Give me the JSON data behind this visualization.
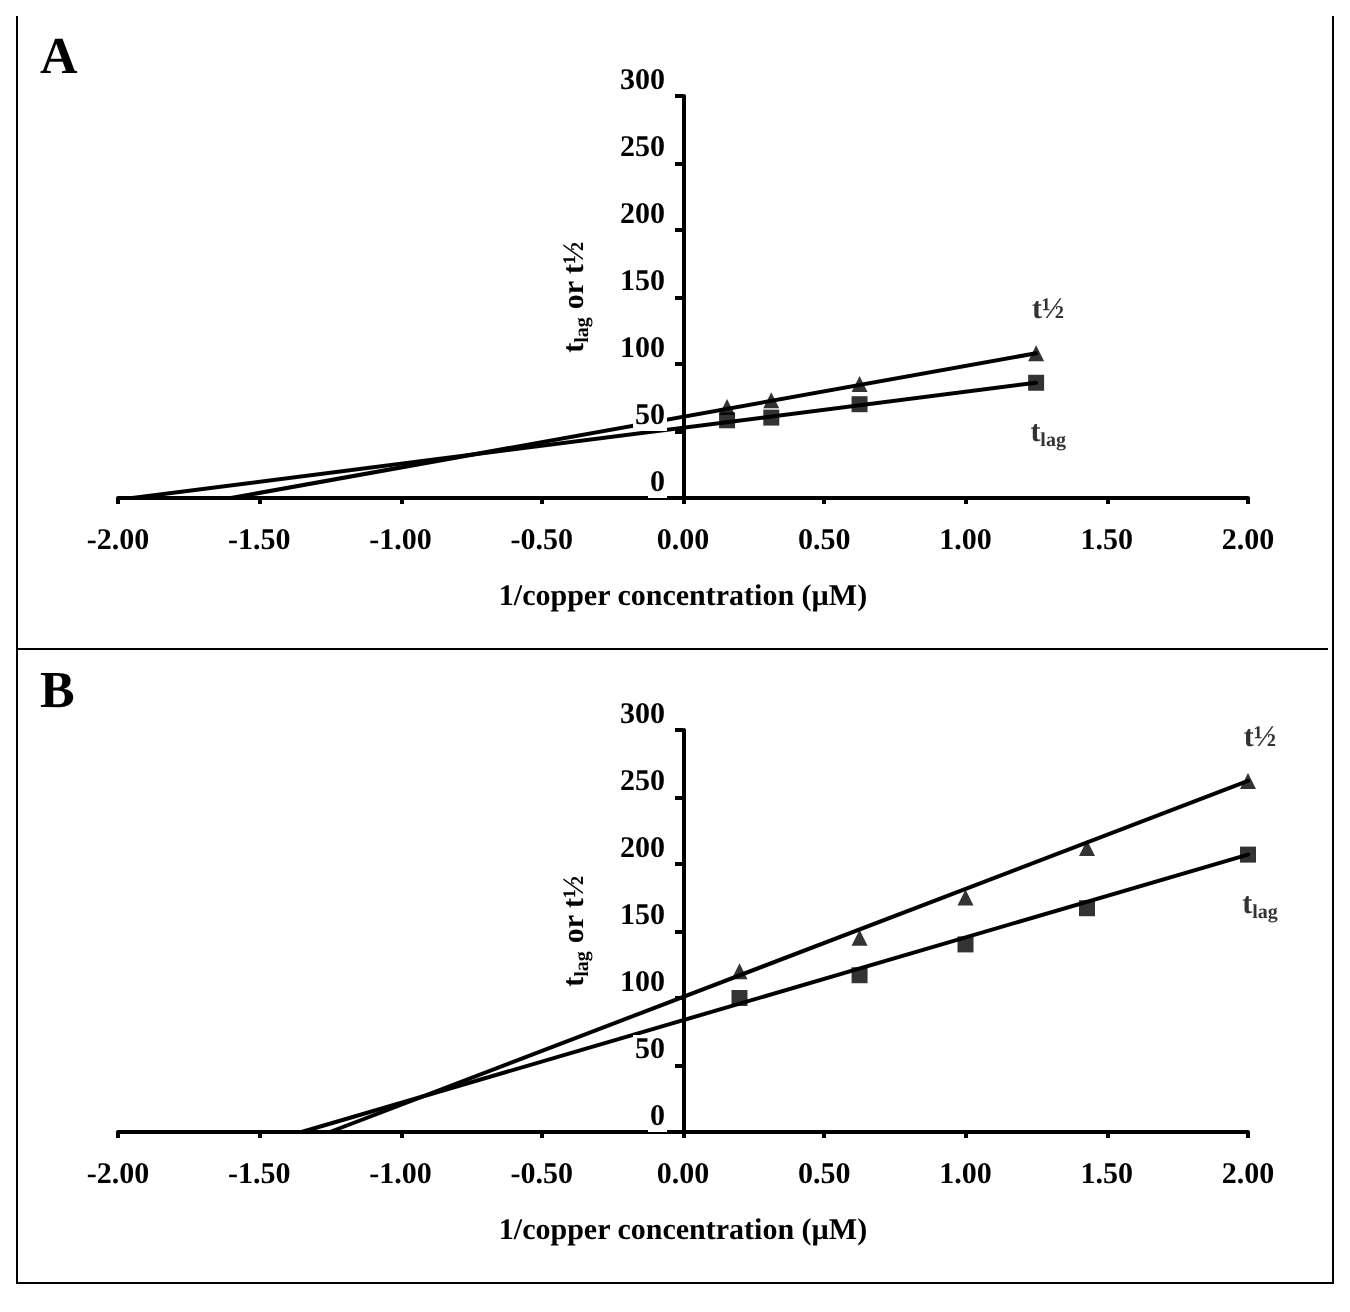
{
  "chart_data": [
    {
      "type": "scatter",
      "title": "A",
      "xlabel": "1/copper concentration (µM)",
      "ylabel": "t$_{lag}$ or t½",
      "xlim": [
        -2,
        2
      ],
      "xticks": [
        {
          "value": -2,
          "label": "-2.00"
        },
        {
          "value": -1.5,
          "label": "-1.50"
        },
        {
          "value": -1,
          "label": "-1.00"
        },
        {
          "value": -0.5,
          "label": "-0.50"
        },
        {
          "value": 0,
          "label": "0.00"
        },
        {
          "value": 0.5,
          "label": "0.50"
        },
        {
          "value": 1,
          "label": "1.00"
        },
        {
          "value": 1.5,
          "label": "1.50"
        },
        {
          "value": 2,
          "label": "2.00"
        }
      ],
      "ylim": [
        0,
        300
      ],
      "yticks": [
        0,
        50,
        100,
        150,
        200,
        250,
        300
      ],
      "grid": false,
      "legend": false,
      "series": [
        {
          "type": "scatter",
          "name": "t½",
          "color": "#000000",
          "marker": "triangle",
          "x": [
            0.156,
            0.3125,
            0.625,
            1.25
          ],
          "values": [
            68,
            73,
            85,
            108
          ]
        },
        {
          "type": "scatter",
          "name": "t$_{lag}$",
          "color": "#000000",
          "marker": "square",
          "x": [
            0.156,
            0.3125,
            0.625,
            1.25
          ],
          "values": [
            58,
            60,
            70,
            86
          ]
        },
        {
          "type": "line",
          "color": "#000000",
          "marker": "none",
          "x": [
            -1.6,
            1.25
          ],
          "values": [
            0,
            108
          ]
        },
        {
          "type": "line",
          "color": "#000000",
          "marker": "none",
          "x": [
            -1.95,
            1.25
          ],
          "values": [
            0,
            86
          ]
        }
      ]
    },
    {
      "type": "scatter",
      "title": "B",
      "xlabel": "1/copper concentration (µM)",
      "ylabel": "t$_{lag}$ or t½",
      "xlim": [
        -2,
        2
      ],
      "xticks": [
        {
          "value": -2,
          "label": "-2.00"
        },
        {
          "value": -1.5,
          "label": "-1.50"
        },
        {
          "value": -1,
          "label": "-1.00"
        },
        {
          "value": -0.5,
          "label": "-0.50"
        },
        {
          "value": 0,
          "label": "0.00"
        },
        {
          "value": 0.5,
          "label": "0.50"
        },
        {
          "value": 1,
          "label": "1.00"
        },
        {
          "value": 1.5,
          "label": "1.50"
        },
        {
          "value": 2,
          "label": "2.00"
        }
      ],
      "ylim": [
        0,
        300
      ],
      "yticks": [
        0,
        50,
        100,
        150,
        200,
        250,
        300
      ],
      "grid": false,
      "legend": false,
      "series": [
        {
          "type": "scatter",
          "name": "t½",
          "color": "#000000",
          "marker": "triangle",
          "x": [
            0.2,
            0.625,
            1.0,
            1.43,
            2.0
          ],
          "values": [
            120,
            145,
            175,
            212,
            262
          ]
        },
        {
          "type": "scatter",
          "name": "t$_{lag}$",
          "color": "#000000",
          "marker": "square",
          "x": [
            0.2,
            0.625,
            1.0,
            1.43,
            2.0
          ],
          "values": [
            100,
            117,
            140,
            167,
            207
          ]
        },
        {
          "type": "line",
          "color": "#000000",
          "marker": "none",
          "x": [
            -1.25,
            2.0
          ],
          "values": [
            0,
            262
          ]
        },
        {
          "type": "line",
          "color": "#000000",
          "marker": "none",
          "x": [
            -1.35,
            2.0
          ],
          "values": [
            0,
            207
          ]
        }
      ]
    }
  ]
}
